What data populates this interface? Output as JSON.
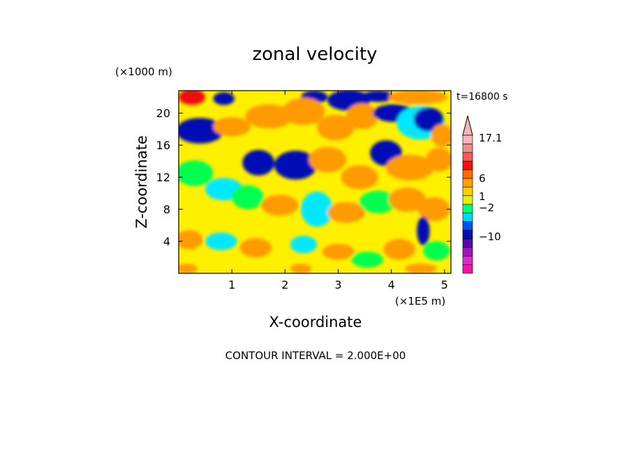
{
  "chart_data": {
    "type": "heatmap",
    "title": "zonal velocity",
    "xlabel": "X-coordinate",
    "ylabel": "Z-coordinate",
    "x_units": "(×1E5 m)",
    "z_units": "(×1000 m)",
    "time_label": "t=16800 s",
    "footer": "CONTOUR INTERVAL = 2.000E+00",
    "xlim": [
      0,
      5.12
    ],
    "ylim": [
      0,
      22.8
    ],
    "x_ticks": [
      1,
      2,
      3,
      4,
      5
    ],
    "y_ticks": [
      4,
      8,
      12,
      16,
      20
    ],
    "colorbar": {
      "labels": [
        {
          "text": "17.1",
          "value": 17.1
        },
        {
          "text": "6",
          "value": 6
        },
        {
          "text": "1",
          "value": 1
        },
        {
          "text": "−2",
          "value": -2
        },
        {
          "text": "−10",
          "value": -10
        }
      ],
      "colors": [
        "#f0189a",
        "#d030c8",
        "#9a18b4",
        "#5808a8",
        "#0010b4",
        "#0050f0",
        "#00d8e8",
        "#00ff80",
        "#e8f000",
        "#ffd000",
        "#ffa000",
        "#ff6a00",
        "#f01010",
        "#f05a5a",
        "#f08c8c",
        "#f4b6b6"
      ]
    },
    "palette": {
      "orange": "#ff9a00",
      "yellow": "#fff000",
      "green": "#00ff50",
      "cyan": "#00e8ff",
      "blue": "#0010b4",
      "red": "#f01010"
    },
    "blobs": [
      {
        "x": 0.25,
        "z": 22.0,
        "rx": 0.25,
        "rz": 1.0,
        "c": "red"
      },
      {
        "x": 0.85,
        "z": 21.8,
        "rx": 0.2,
        "rz": 0.8,
        "c": "blue"
      },
      {
        "x": 2.55,
        "z": 22.0,
        "rx": 0.25,
        "rz": 0.8,
        "c": "blue"
      },
      {
        "x": 3.2,
        "z": 21.6,
        "rx": 0.4,
        "rz": 1.3,
        "c": "blue"
      },
      {
        "x": 3.75,
        "z": 22.1,
        "rx": 0.3,
        "rz": 0.7,
        "c": "blue"
      },
      {
        "x": 4.5,
        "z": 22.0,
        "rx": 0.55,
        "rz": 0.9,
        "c": "orange"
      },
      {
        "x": 0.4,
        "z": 17.8,
        "rx": 0.45,
        "rz": 1.6,
        "c": "blue"
      },
      {
        "x": 1.0,
        "z": 18.3,
        "rx": 0.35,
        "rz": 1.2,
        "c": "orange"
      },
      {
        "x": 1.7,
        "z": 19.6,
        "rx": 0.45,
        "rz": 1.5,
        "c": "orange"
      },
      {
        "x": 2.35,
        "z": 20.2,
        "rx": 0.4,
        "rz": 1.7,
        "c": "orange"
      },
      {
        "x": 2.95,
        "z": 18.2,
        "rx": 0.35,
        "rz": 1.6,
        "c": "orange"
      },
      {
        "x": 3.45,
        "z": 19.6,
        "rx": 0.3,
        "rz": 1.6,
        "c": "orange"
      },
      {
        "x": 4.05,
        "z": 20.0,
        "rx": 0.4,
        "rz": 1.1,
        "c": "blue"
      },
      {
        "x": 4.55,
        "z": 18.8,
        "rx": 0.45,
        "rz": 2.1,
        "c": "cyan"
      },
      {
        "x": 4.7,
        "z": 19.2,
        "rx": 0.28,
        "rz": 1.5,
        "c": "blue"
      },
      {
        "x": 4.95,
        "z": 17.2,
        "rx": 0.2,
        "rz": 1.4,
        "c": "orange"
      },
      {
        "x": 1.5,
        "z": 13.8,
        "rx": 0.3,
        "rz": 1.6,
        "c": "blue"
      },
      {
        "x": 2.2,
        "z": 13.5,
        "rx": 0.4,
        "rz": 1.8,
        "c": "blue"
      },
      {
        "x": 2.8,
        "z": 14.2,
        "rx": 0.35,
        "rz": 1.6,
        "c": "orange"
      },
      {
        "x": 3.4,
        "z": 12.0,
        "rx": 0.35,
        "rz": 1.5,
        "c": "orange"
      },
      {
        "x": 3.9,
        "z": 15.0,
        "rx": 0.3,
        "rz": 1.6,
        "c": "blue"
      },
      {
        "x": 4.35,
        "z": 13.2,
        "rx": 0.45,
        "rz": 1.6,
        "c": "orange"
      },
      {
        "x": 4.9,
        "z": 14.2,
        "rx": 0.25,
        "rz": 1.5,
        "c": "orange"
      },
      {
        "x": 0.3,
        "z": 12.5,
        "rx": 0.35,
        "rz": 1.6,
        "c": "green"
      },
      {
        "x": 0.85,
        "z": 10.5,
        "rx": 0.35,
        "rz": 1.4,
        "c": "cyan"
      },
      {
        "x": 1.3,
        "z": 9.5,
        "rx": 0.3,
        "rz": 1.5,
        "c": "green"
      },
      {
        "x": 1.9,
        "z": 8.5,
        "rx": 0.35,
        "rz": 1.3,
        "c": "orange"
      },
      {
        "x": 2.6,
        "z": 8.0,
        "rx": 0.3,
        "rz": 2.2,
        "c": "cyan"
      },
      {
        "x": 3.15,
        "z": 7.6,
        "rx": 0.35,
        "rz": 1.3,
        "c": "orange"
      },
      {
        "x": 3.75,
        "z": 8.9,
        "rx": 0.35,
        "rz": 1.4,
        "c": "green"
      },
      {
        "x": 4.3,
        "z": 9.2,
        "rx": 0.35,
        "rz": 1.5,
        "c": "orange"
      },
      {
        "x": 4.8,
        "z": 8.0,
        "rx": 0.3,
        "rz": 1.5,
        "c": "orange"
      },
      {
        "x": 4.6,
        "z": 5.3,
        "rx": 0.12,
        "rz": 1.8,
        "c": "blue"
      },
      {
        "x": 0.2,
        "z": 4.2,
        "rx": 0.25,
        "rz": 1.2,
        "c": "orange"
      },
      {
        "x": 0.8,
        "z": 4.0,
        "rx": 0.3,
        "rz": 1.1,
        "c": "cyan"
      },
      {
        "x": 1.45,
        "z": 3.2,
        "rx": 0.3,
        "rz": 1.2,
        "c": "orange"
      },
      {
        "x": 2.35,
        "z": 3.6,
        "rx": 0.25,
        "rz": 1.1,
        "c": "cyan"
      },
      {
        "x": 3.0,
        "z": 2.7,
        "rx": 0.3,
        "rz": 1.0,
        "c": "orange"
      },
      {
        "x": 3.55,
        "z": 1.7,
        "rx": 0.3,
        "rz": 1.0,
        "c": "green"
      },
      {
        "x": 4.15,
        "z": 3.0,
        "rx": 0.3,
        "rz": 1.3,
        "c": "orange"
      },
      {
        "x": 4.85,
        "z": 2.8,
        "rx": 0.25,
        "rz": 1.2,
        "c": "green"
      },
      {
        "x": 0.15,
        "z": 0.6,
        "rx": 0.2,
        "rz": 0.6,
        "c": "orange"
      },
      {
        "x": 2.3,
        "z": 0.6,
        "rx": 0.2,
        "rz": 0.6,
        "c": "orange"
      },
      {
        "x": 4.55,
        "z": 0.6,
        "rx": 0.3,
        "rz": 0.6,
        "c": "orange"
      }
    ]
  }
}
